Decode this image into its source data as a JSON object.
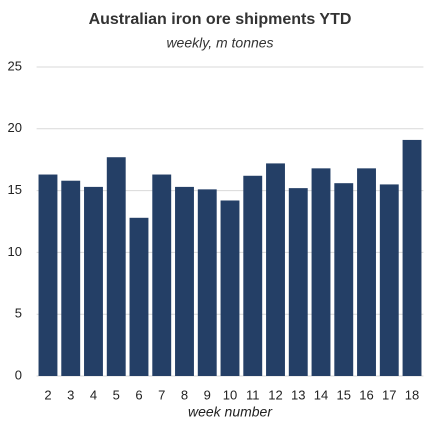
{
  "chart_data": {
    "type": "bar",
    "title": "Australian iron ore shipments YTD",
    "subtitle": "weekly, m tonnes",
    "x_label": "week number",
    "categories": [
      "2",
      "3",
      "4",
      "5",
      "6",
      "7",
      "8",
      "9",
      "10",
      "11",
      "12",
      "13",
      "14",
      "15",
      "16",
      "17",
      "18"
    ],
    "values": [
      16.3,
      15.8,
      15.3,
      17.7,
      12.8,
      16.3,
      15.3,
      15.1,
      14.2,
      16.2,
      17.2,
      15.2,
      16.8,
      15.6,
      16.8,
      15.5,
      19.1
    ],
    "color": "#243f66",
    "ylim": [
      0,
      25
    ],
    "yticks": [
      0,
      5,
      10,
      15,
      20,
      25
    ],
    "grid": true
  }
}
